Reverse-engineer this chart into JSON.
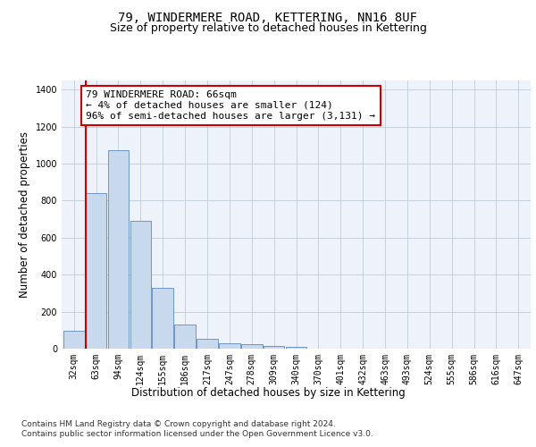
{
  "title": "79, WINDERMERE ROAD, KETTERING, NN16 8UF",
  "subtitle": "Size of property relative to detached houses in Kettering",
  "xlabel": "Distribution of detached houses by size in Kettering",
  "ylabel": "Number of detached properties",
  "categories": [
    "32sqm",
    "63sqm",
    "94sqm",
    "124sqm",
    "155sqm",
    "186sqm",
    "217sqm",
    "247sqm",
    "278sqm",
    "309sqm",
    "340sqm",
    "370sqm",
    "401sqm",
    "432sqm",
    "463sqm",
    "493sqm",
    "524sqm",
    "555sqm",
    "586sqm",
    "616sqm",
    "647sqm"
  ],
  "values": [
    95,
    840,
    1075,
    690,
    330,
    130,
    55,
    30,
    22,
    15,
    10,
    0,
    0,
    0,
    0,
    0,
    0,
    0,
    0,
    0,
    0
  ],
  "bar_color": "#c9d9ed",
  "bar_edge_color": "#5a8abf",
  "vline_color": "#cc0000",
  "annotation_text": "79 WINDERMERE ROAD: 66sqm\n← 4% of detached houses are smaller (124)\n96% of semi-detached houses are larger (3,131) →",
  "annotation_box_color": "#ffffff",
  "annotation_box_edge": "#cc0000",
  "ylim": [
    0,
    1450
  ],
  "yticks": [
    0,
    200,
    400,
    600,
    800,
    1000,
    1200,
    1400
  ],
  "footer1": "Contains HM Land Registry data © Crown copyright and database right 2024.",
  "footer2": "Contains public sector information licensed under the Open Government Licence v3.0.",
  "bg_color": "#eef2fa",
  "fig_bg_color": "#ffffff",
  "title_fontsize": 10,
  "subtitle_fontsize": 9,
  "axis_label_fontsize": 8.5,
  "tick_fontsize": 7,
  "annotation_fontsize": 8,
  "footer_fontsize": 6.5
}
